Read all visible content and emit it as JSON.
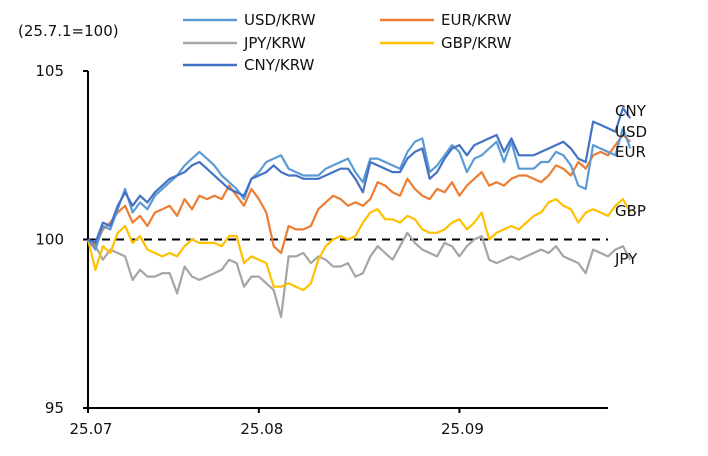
{
  "chart_data": {
    "type": "line",
    "title": "",
    "unit_label": "(25.7.1=100)",
    "xlabel": "",
    "ylabel": "",
    "ylim": [
      95,
      105
    ],
    "yticks": [
      95,
      100,
      105
    ],
    "xlim": [
      0,
      70
    ],
    "xticks": [
      {
        "pos": 0,
        "label": "25.07"
      },
      {
        "pos": 23,
        "label": "25.08"
      },
      {
        "pos": 50,
        "label": "25.09"
      }
    ],
    "reference_line": 100,
    "grid": false,
    "legend_position": "top",
    "series": [
      {
        "name": "USD/KRW",
        "color": "#5b9bd5",
        "end_label": "USD",
        "values": [
          100,
          99.7,
          100.4,
          100.3,
          100.9,
          101.5,
          100.8,
          101.1,
          100.9,
          101.3,
          101.5,
          101.7,
          101.9,
          102.2,
          102.4,
          102.6,
          102.4,
          102.2,
          101.9,
          101.7,
          101.5,
          101.2,
          101.8,
          102.0,
          102.3,
          102.4,
          102.5,
          102.1,
          102.0,
          101.9,
          101.9,
          101.9,
          102.1,
          102.2,
          102.3,
          102.4,
          102.0,
          101.7,
          102.4,
          102.4,
          102.3,
          102.2,
          102.1,
          102.6,
          102.9,
          103.0,
          102.0,
          102.2,
          102.5,
          102.8,
          102.6,
          102.0,
          102.4,
          102.5,
          102.7,
          102.9,
          102.3,
          102.9,
          102.1,
          102.1,
          102.1,
          102.3,
          102.3,
          102.6,
          102.5,
          102.2,
          101.6,
          101.5,
          102.8,
          102.7,
          102.6,
          102.5,
          103.3,
          102.7
        ]
      },
      {
        "name": "EUR/KRW",
        "color": "#ed7d31",
        "end_label": "EUR",
        "values": [
          100,
          99.8,
          100.3,
          100.5,
          100.8,
          101.0,
          100.5,
          100.7,
          100.4,
          100.8,
          100.9,
          101.0,
          100.7,
          101.2,
          100.9,
          101.3,
          101.2,
          101.3,
          101.2,
          101.6,
          101.3,
          101.0,
          101.5,
          101.2,
          100.8,
          99.8,
          99.6,
          100.4,
          100.3,
          100.3,
          100.4,
          100.9,
          101.1,
          101.3,
          101.2,
          101.0,
          101.1,
          101.0,
          101.2,
          101.7,
          101.6,
          101.4,
          101.3,
          101.8,
          101.5,
          101.3,
          101.2,
          101.5,
          101.4,
          101.7,
          101.3,
          101.6,
          101.8,
          102.0,
          101.6,
          101.7,
          101.6,
          101.8,
          101.9,
          101.9,
          101.8,
          101.7,
          101.9,
          102.2,
          102.1,
          101.9,
          102.3,
          102.1,
          102.5,
          102.6,
          102.5,
          102.8,
          103.1,
          102.9
        ]
      },
      {
        "name": "JPY/KRW",
        "color": "#a5a5a5",
        "end_label": "JPY",
        "values": [
          100,
          99.8,
          99.4,
          99.7,
          99.6,
          99.5,
          98.8,
          99.1,
          98.9,
          98.9,
          99.0,
          99.0,
          98.4,
          99.2,
          98.9,
          98.8,
          98.9,
          99.0,
          99.1,
          99.4,
          99.3,
          98.6,
          98.9,
          98.9,
          98.7,
          98.5,
          97.7,
          99.5,
          99.5,
          99.6,
          99.3,
          99.5,
          99.4,
          99.2,
          99.2,
          99.3,
          98.9,
          99.0,
          99.5,
          99.8,
          99.6,
          99.4,
          99.8,
          100.2,
          99.9,
          99.7,
          99.6,
          99.5,
          99.9,
          99.8,
          99.5,
          99.8,
          100.0,
          100.1,
          99.4,
          99.3,
          99.4,
          99.5,
          99.4,
          99.5,
          99.6,
          99.7,
          99.6,
          99.8,
          99.5,
          99.4,
          99.3,
          99.0,
          99.7,
          99.6,
          99.5,
          99.7,
          99.8,
          99.4
        ]
      },
      {
        "name": "GBP/KRW",
        "color": "#ffc000",
        "end_label": "GBP",
        "values": [
          100,
          99.1,
          99.8,
          99.6,
          100.2,
          100.4,
          99.9,
          100.1,
          99.7,
          99.6,
          99.5,
          99.6,
          99.5,
          99.8,
          100.0,
          99.9,
          99.9,
          99.9,
          99.8,
          100.1,
          100.1,
          99.3,
          99.5,
          99.4,
          99.3,
          98.6,
          98.6,
          98.7,
          98.6,
          98.5,
          98.7,
          99.4,
          99.8,
          100.0,
          100.1,
          100.0,
          100.1,
          100.5,
          100.8,
          100.9,
          100.6,
          100.6,
          100.5,
          100.7,
          100.6,
          100.3,
          100.2,
          100.2,
          100.3,
          100.5,
          100.6,
          100.3,
          100.5,
          100.8,
          100.0,
          100.2,
          100.3,
          100.4,
          100.3,
          100.5,
          100.7,
          100.8,
          101.1,
          101.2,
          101.0,
          100.9,
          100.5,
          100.8,
          100.9,
          100.8,
          100.7,
          101.0,
          101.2,
          100.8
        ]
      },
      {
        "name": "CNY/KRW",
        "color": "#4472c4",
        "end_label": "CNY",
        "values": [
          100,
          99.9,
          100.5,
          100.4,
          101.0,
          101.4,
          101.0,
          101.3,
          101.1,
          101.4,
          101.6,
          101.8,
          101.9,
          102.0,
          102.2,
          102.3,
          102.1,
          101.9,
          101.7,
          101.5,
          101.4,
          101.3,
          101.8,
          101.9,
          102.0,
          102.2,
          102.0,
          101.9,
          101.9,
          101.8,
          101.8,
          101.8,
          101.9,
          102.0,
          102.1,
          102.1,
          101.8,
          101.4,
          102.3,
          102.2,
          102.1,
          102.0,
          102.0,
          102.4,
          102.6,
          102.7,
          101.8,
          102.0,
          102.4,
          102.7,
          102.8,
          102.5,
          102.8,
          102.9,
          103.0,
          103.1,
          102.6,
          103.0,
          102.5,
          102.5,
          102.5,
          102.6,
          102.7,
          102.8,
          102.9,
          102.7,
          102.4,
          102.3,
          103.5,
          103.4,
          103.3,
          103.2,
          103.9,
          103.6
        ]
      }
    ],
    "end_label_order": [
      "CNY",
      "USD",
      "EUR",
      "GBP",
      "JPY"
    ]
  }
}
